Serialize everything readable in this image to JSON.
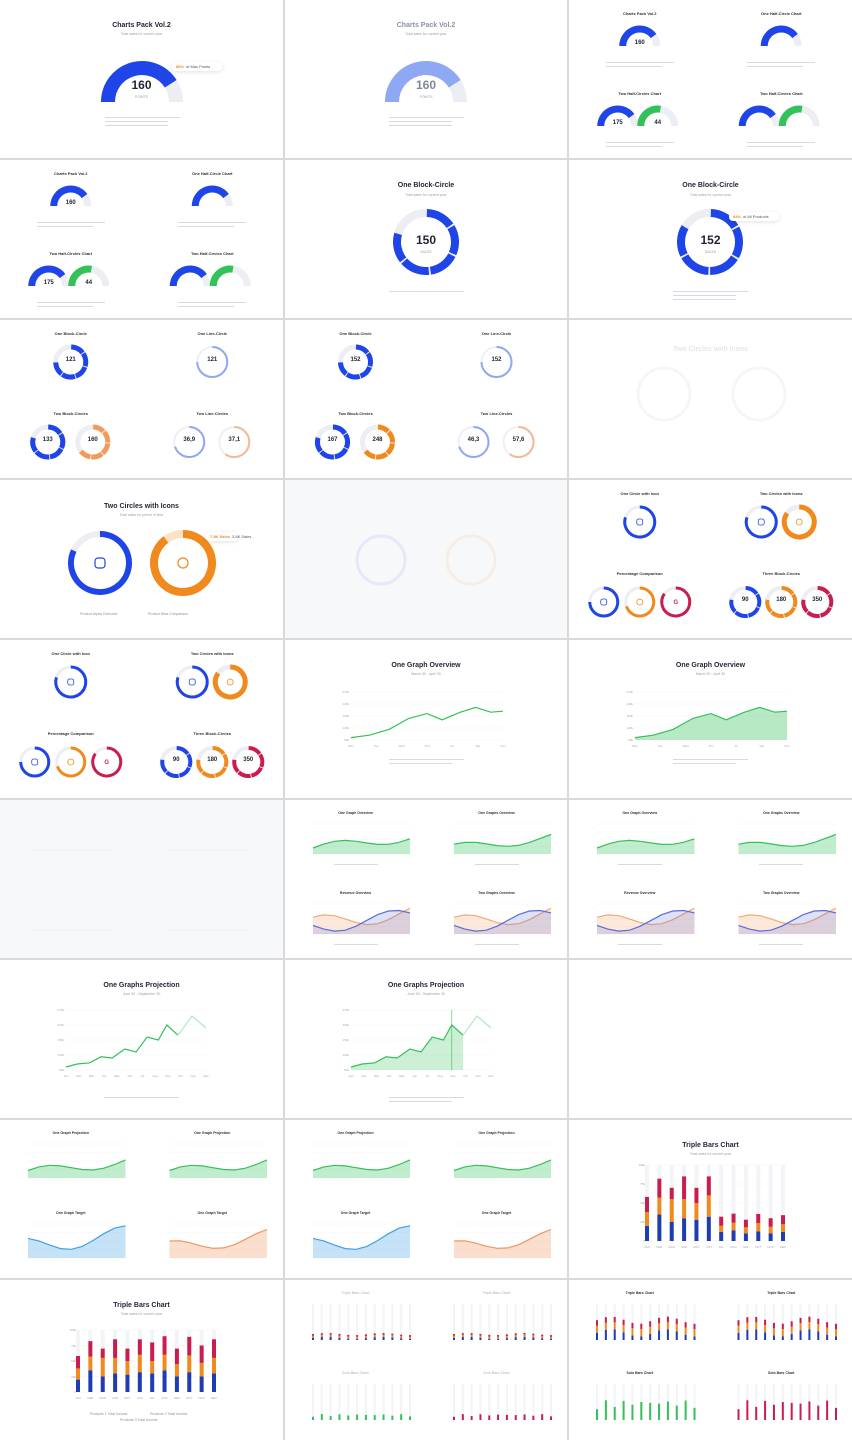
{
  "colors": {
    "blue": "#1f45e8",
    "blueLight": "#8ea8f3",
    "green": "#33c159",
    "orange": "#f08a1c",
    "red": "#c91d4e",
    "grayTrack": "#eceef3"
  },
  "c00": {
    "title": "Charts Pack Vol.2",
    "subtitle": "Total sales for current year",
    "value": "160",
    "unit": "POINTS",
    "badge_pct": "80%",
    "badge_text": "of Max Points"
  },
  "c01": {
    "title": "Charts Pack Vol.2",
    "subtitle": "Total sales for current year",
    "value": "160",
    "unit": "POINTS"
  },
  "c02": {
    "titles": [
      "Charts Pack Vol.2",
      "One Half-Circle Chart",
      "Two Half-Circles Chart",
      "Two Half-Circles Chart"
    ],
    "v1": "160",
    "v2": "175",
    "v3": "44"
  },
  "c10": {
    "titles": [
      "Charts Pack Vol.2",
      "One Half-Circle Chart",
      "Two Half-Circles Chart",
      "Two Half-Circles Chart"
    ],
    "v1": "160",
    "v2": "175",
    "v3": "44"
  },
  "c11": {
    "title": "One Block-Circle",
    "subtitle": "Total sales for current year",
    "value": "150",
    "unit": "SALES"
  },
  "c12": {
    "title": "One Block-Circle",
    "subtitle": "Total sales for current year",
    "value": "152",
    "unit": "SALES",
    "badge_pct": "84%",
    "badge_text": "of All Products"
  },
  "c20": {
    "titles": [
      "One Block-Circle",
      "One Line-Circle",
      "Two Block-Circles",
      "Two Line-Circles"
    ],
    "vals": [
      "121",
      "121",
      "133",
      "160",
      "36,9",
      "37,1"
    ]
  },
  "c21": {
    "titles": [
      "One Block-Circle",
      "One Line-Circle",
      "Two Block-Circles",
      "Two Line-Circles"
    ],
    "vals": [
      "152",
      "152",
      "167",
      "248",
      "46,3",
      "57,6"
    ]
  },
  "c22": {
    "title": "Two Circles with Icons"
  },
  "c30": {
    "title": "Two Circles with Icons",
    "subtitle": "Total sales for period of time",
    "badge1": "7.5K Sales",
    "badge2": "3.8K Sales",
    "legend1": "Product Alpha Overview",
    "legend2": "Product Beta Comparison"
  },
  "c32": {
    "titles": [
      "One Circle with Icon",
      "Two Circles with Icons",
      "Percentage Comparison",
      "Three Block-Circles"
    ],
    "vals": [
      "90",
      "180",
      "350"
    ]
  },
  "c40": {
    "titles": [
      "One Circle with Icon",
      "Two Circles with Icons",
      "Percentage Comparison",
      "Three Block-Circles"
    ],
    "vals": [
      "90",
      "180",
      "350"
    ]
  },
  "c41": {
    "title": "One Graph Overview",
    "subtitle": "March 30 - April 30",
    "yticks": [
      "275k",
      "200k",
      "150k",
      "100k",
      "50k"
    ],
    "xticks": [
      "Mon",
      "Tue",
      "Wed",
      "Thu",
      "Fri",
      "Sat",
      "Sun"
    ]
  },
  "c42": {
    "title": "One Graph Overview",
    "subtitle": "March 30 - April 30",
    "yticks": [
      "275k",
      "200k",
      "150k",
      "100k",
      "50k"
    ],
    "xticks": [
      "Mon",
      "Tue",
      "Wed",
      "Thu",
      "Fri",
      "Sat",
      "Sun"
    ]
  },
  "c51": {
    "titles": [
      "One Graph Overview",
      "One Graphs Overview",
      "Revenue Overview",
      "Two Graphs Overview"
    ]
  },
  "c52": {
    "titles": [
      "One Graph Overview",
      "One Graphs Overview",
      "Revenue Overview",
      "Two Graphs Overview"
    ]
  },
  "c60": {
    "title": "One Graphs Projection",
    "subtitle": "June 30 - September 30",
    "yticks": [
      "275k",
      "200k",
      "150k",
      "100k",
      "50k"
    ],
    "xticks": [
      "Jan",
      "Feb",
      "Mar",
      "Apr",
      "May",
      "Jun",
      "Jul",
      "Aug",
      "Sep",
      "Oct",
      "Nov",
      "Dec"
    ]
  },
  "c61": {
    "title": "One Graphs Projection",
    "subtitle": "June 30 - September 30",
    "yticks": [
      "275k",
      "200k",
      "150k",
      "100k",
      "50k"
    ],
    "xticks": [
      "Jan",
      "Feb",
      "Mar",
      "Apr",
      "May",
      "Jun",
      "Jul",
      "Aug",
      "Sep",
      "Oct",
      "Nov",
      "Dec"
    ]
  },
  "c70": {
    "titles": [
      "One Graph Projection",
      "One Graph Projection",
      "One Graph Target",
      "One Graph Target"
    ]
  },
  "c71": {
    "titles": [
      "One Graph Projection",
      "One Graph Projection",
      "One Graph Target",
      "One Graph Target"
    ]
  },
  "c72": {
    "title": "Triple Bars Chart",
    "subtitle": "Total sales for current year",
    "yticks": [
      "100k",
      "75k",
      "50k",
      "25k",
      "0"
    ],
    "xticks": [
      "JAN",
      "FEB",
      "MAR",
      "APR",
      "MAY",
      "JUN",
      "JUL",
      "AUG",
      "SEP",
      "OCT",
      "NOV",
      "DEC"
    ]
  },
  "c80": {
    "title": "Triple Bars Chart",
    "subtitle": "Total sales for current year",
    "yticks": [
      "100k",
      "75k",
      "50k",
      "25k",
      "0"
    ],
    "xticks": [
      "JAN",
      "FEB",
      "MAR",
      "APR",
      "MAY",
      "JUN",
      "JUL",
      "AUG",
      "SEP",
      "OCT",
      "NOV",
      "DEC"
    ],
    "legend1": "Products 1 Total Income",
    "legend2": "Products 2 Total Income",
    "legend3": "Products 3 Total Income"
  },
  "c81": {
    "titles": [
      "Triple Bars Chart",
      "Triple Bars Chart",
      "Solo Bars Chart",
      "Solo Bars Chart"
    ]
  },
  "c82": {
    "titles": [
      "Triple Bars Chart",
      "Triple Bars Chart",
      "Solo Bars Chart",
      "Solo Bars Chart"
    ]
  }
}
